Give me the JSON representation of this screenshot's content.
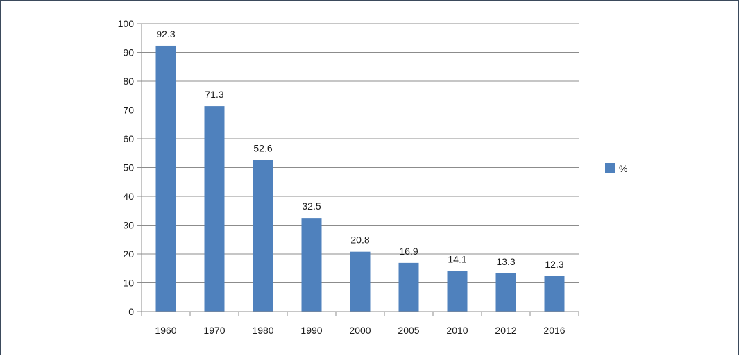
{
  "chart_data": {
    "type": "bar",
    "categories": [
      "1960",
      "1970",
      "1980",
      "1990",
      "2000",
      "2005",
      "2010",
      "2012",
      "2016"
    ],
    "series": [
      {
        "name": "%",
        "values": [
          92.3,
          71.3,
          52.6,
          32.5,
          20.8,
          16.9,
          14.1,
          13.3,
          12.3
        ],
        "color": "#4f81bd"
      }
    ],
    "data_labels": [
      "92.3",
      "71.3",
      "52.6",
      "32.5",
      "20.8",
      "16.9",
      "14.1",
      "13.3",
      "12.3"
    ],
    "y_ticks": [
      "0",
      "10",
      "20",
      "30",
      "40",
      "50",
      "60",
      "70",
      "80",
      "90",
      "100"
    ],
    "ylim": [
      0,
      100
    ],
    "grid": true,
    "legend_position": "right",
    "title": "",
    "xlabel": "",
    "ylabel": ""
  }
}
